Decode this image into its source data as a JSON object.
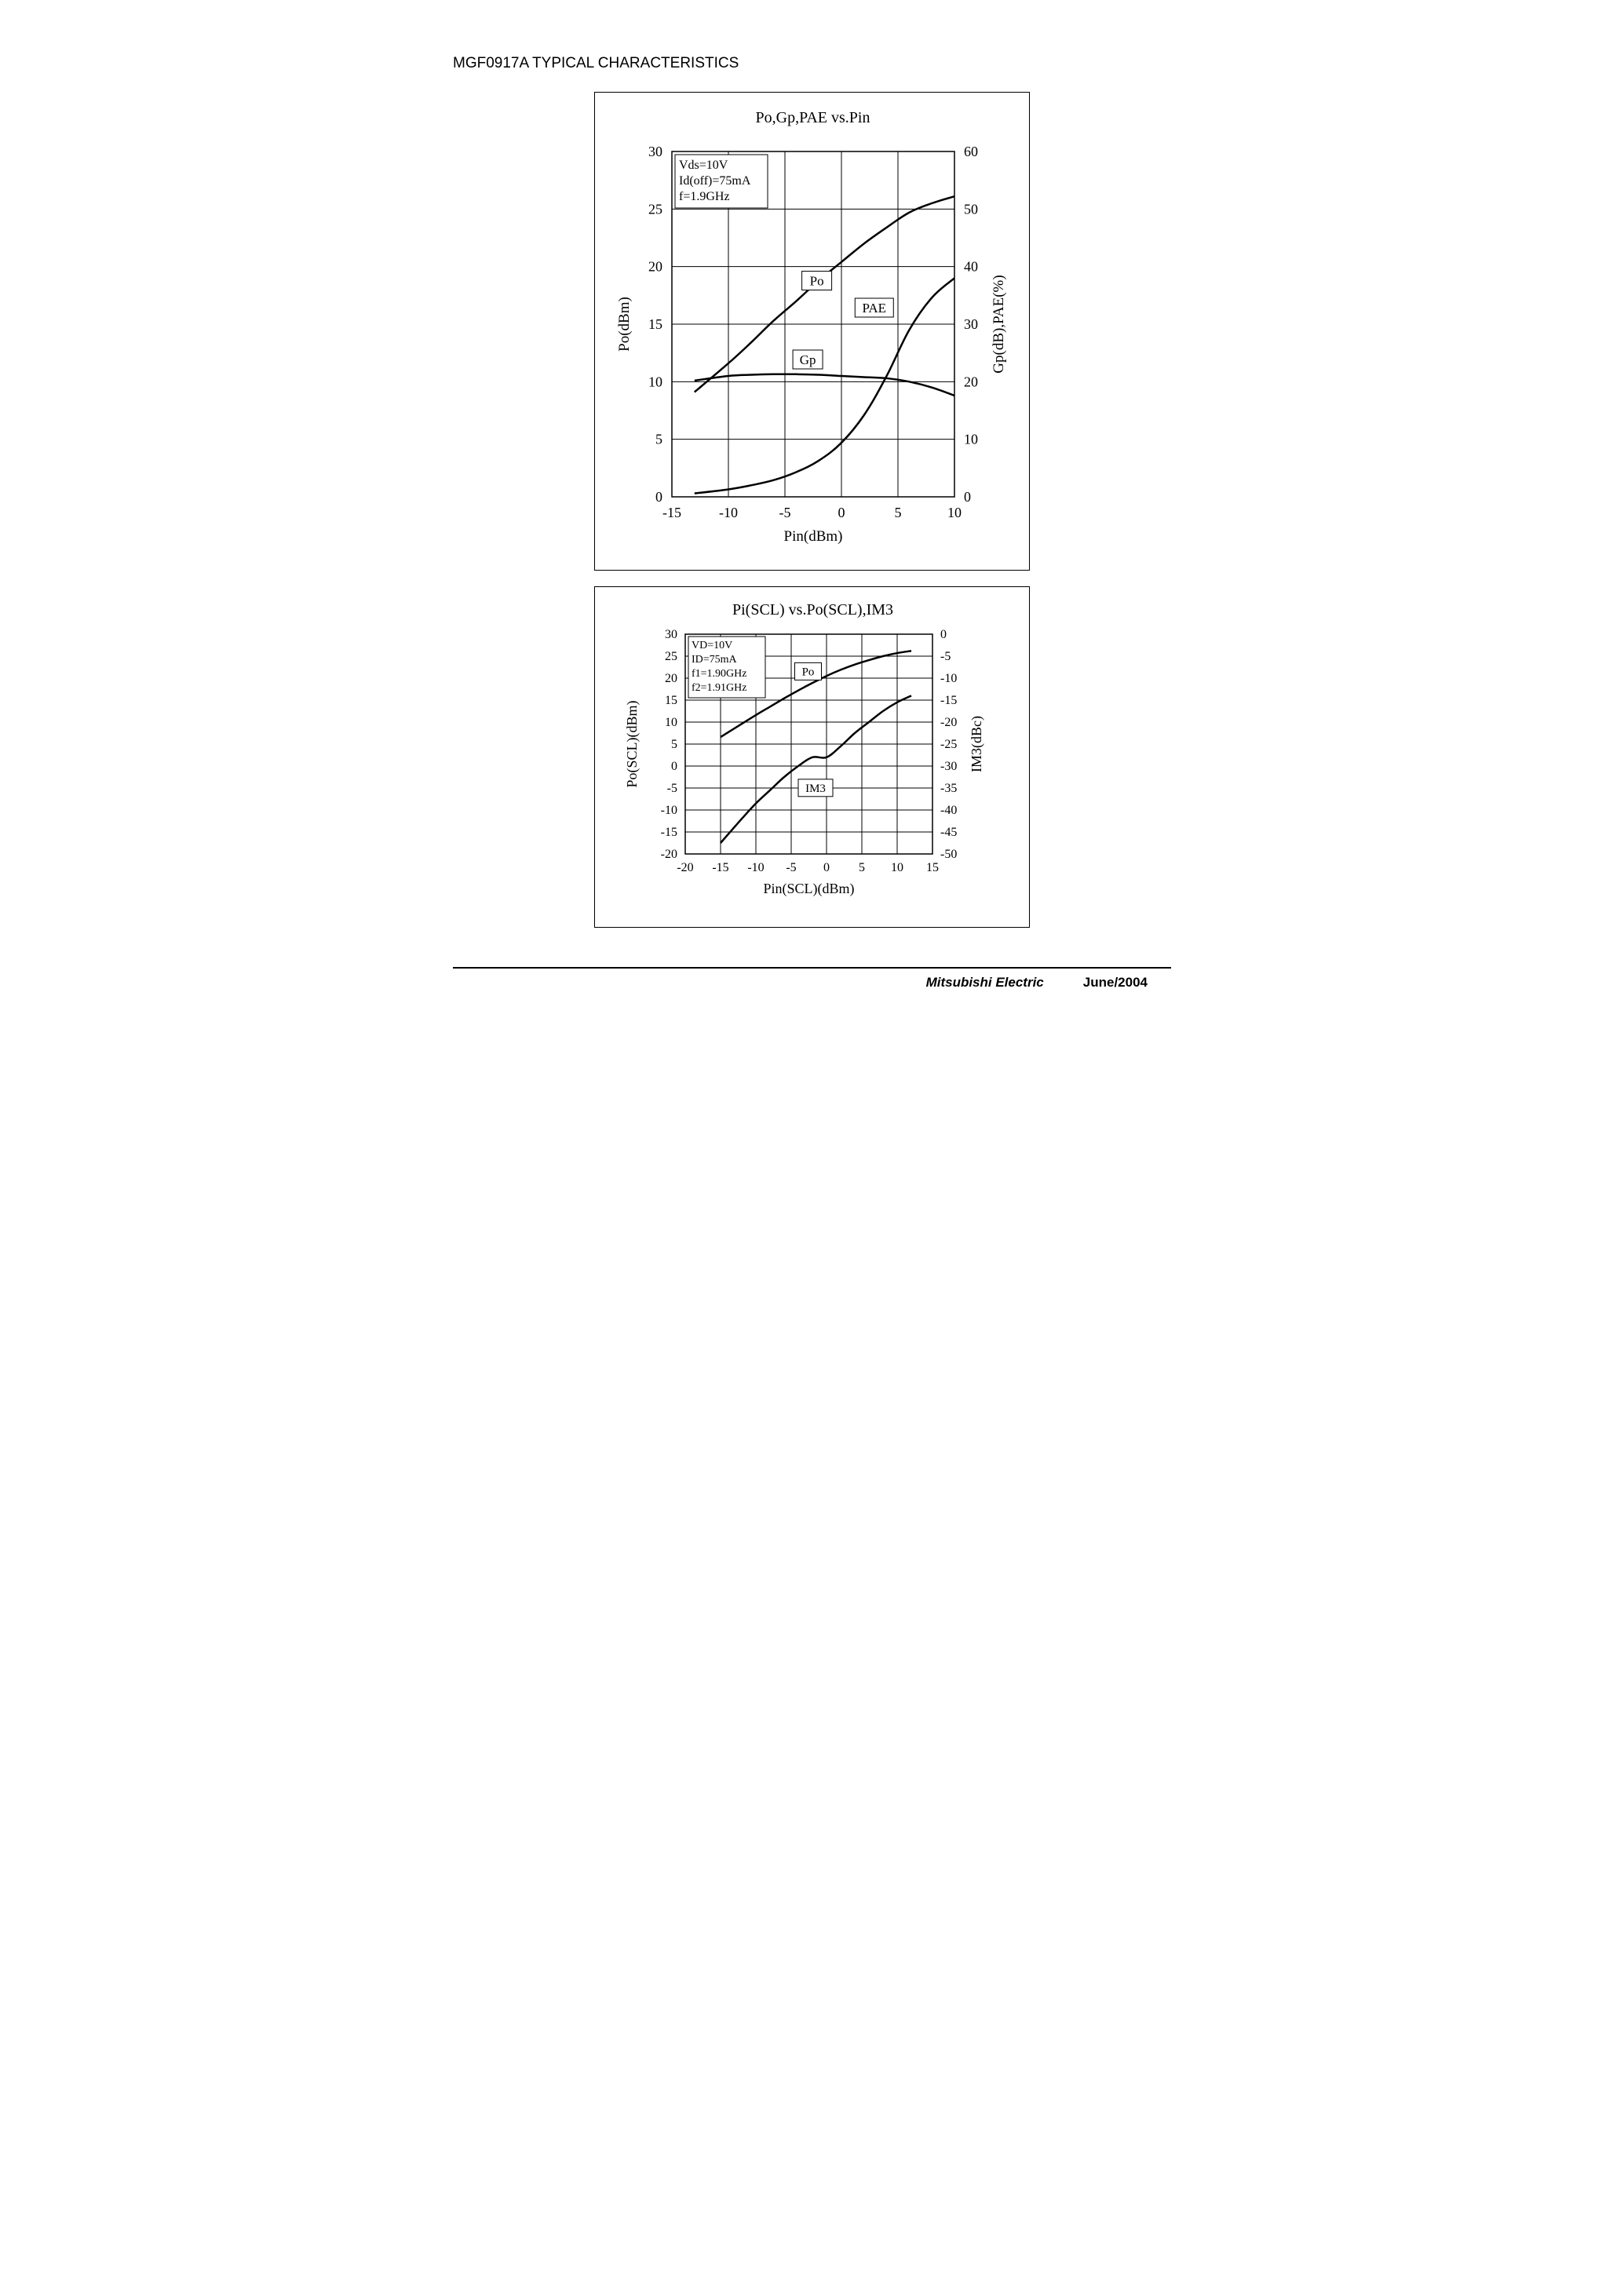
{
  "page": {
    "title": "MGF0917A TYPICAL CHARACTERISTICS",
    "footer_company": "Mitsubishi  Electric",
    "footer_date": "June/2004"
  },
  "chart1": {
    "type": "line",
    "title": "Po,Gp,PAE vs.Pin",
    "title_fontsize": 20,
    "background_color": "#ffffff",
    "axis_color": "#000000",
    "line_color": "#000000",
    "line_width": 2.5,
    "font_family": "Times New Roman",
    "tick_fontsize": 18,
    "label_fontsize": 19,
    "x_label": "Pin(dBm)",
    "y_label_left": "Po(dBm)",
    "y_label_right": "Gp(dB),PAE(%)",
    "xlim": [
      -15,
      10
    ],
    "xticks": [
      -15,
      -10,
      -5,
      0,
      5,
      10
    ],
    "ylim_left": [
      0,
      30
    ],
    "yticks_left": [
      0,
      5,
      10,
      15,
      20,
      25,
      30
    ],
    "ylim_right": [
      0,
      60
    ],
    "yticks_right": [
      0,
      10,
      20,
      30,
      40,
      50,
      60
    ],
    "grid": true,
    "grid_color": "#000000",
    "conditions_box": {
      "lines": [
        "Vds=10V",
        "Id(off)=75mA",
        "f=1.9GHz"
      ],
      "border_color": "#000000",
      "fontsize": 16
    },
    "series_labels": {
      "Po": "Po",
      "PAE": "PAE",
      "Gp": "Gp"
    },
    "series": {
      "Po": {
        "axis": "left",
        "x": [
          -13,
          -10,
          -8,
          -6,
          -4,
          -2,
          0,
          2,
          4,
          6,
          8,
          10
        ],
        "y": [
          9.1,
          11.6,
          13.4,
          15.3,
          17.0,
          18.8,
          20.4,
          22.0,
          23.4,
          24.7,
          25.5,
          26.1
        ]
      },
      "Gp": {
        "axis": "right",
        "x": [
          -13,
          -10,
          -8,
          -6,
          -4,
          -2,
          0,
          2,
          4,
          6,
          8,
          10
        ],
        "y": [
          20.2,
          21.0,
          21.2,
          21.3,
          21.3,
          21.2,
          21.0,
          20.8,
          20.6,
          20.0,
          19.0,
          17.6
        ]
      },
      "PAE": {
        "axis": "right",
        "x": [
          -13,
          -10,
          -8,
          -6,
          -4,
          -2,
          0,
          2,
          4,
          6,
          8,
          10
        ],
        "y": [
          0.6,
          1.3,
          2.0,
          2.9,
          4.3,
          6.3,
          9.4,
          14.2,
          21.0,
          29.0,
          34.6,
          38.0
        ]
      }
    }
  },
  "chart2": {
    "type": "line",
    "title": "Pi(SCL) vs.Po(SCL),IM3",
    "title_fontsize": 20,
    "background_color": "#ffffff",
    "axis_color": "#000000",
    "line_color": "#000000",
    "line_width": 2.5,
    "font_family": "Times New Roman",
    "tick_fontsize": 16,
    "label_fontsize": 18,
    "x_label": "Pin(SCL)(dBm)",
    "y_label_left": "Po(SCL)(dBm)",
    "y_label_right": "IM3(dBc)",
    "xlim": [
      -20,
      15
    ],
    "xticks": [
      -20,
      -15,
      -10,
      -5,
      0,
      5,
      10,
      15
    ],
    "ylim_left": [
      -20,
      30
    ],
    "yticks_left": [
      -20,
      -15,
      -10,
      -5,
      0,
      5,
      10,
      15,
      20,
      25,
      30
    ],
    "ylim_right": [
      -50,
      0
    ],
    "yticks_right": [
      -50,
      -45,
      -40,
      -35,
      -30,
      -25,
      -20,
      -15,
      -10,
      -5,
      0
    ],
    "grid": true,
    "grid_color": "#000000",
    "conditions_box": {
      "lines": [
        "VD=10V",
        "ID=75mA",
        "f1=1.90GHz",
        "f2=1.91GHz"
      ],
      "border_color": "#000000",
      "fontsize": 14
    },
    "series_labels": {
      "Po": "Po",
      "IM3": "IM3"
    },
    "series": {
      "Po": {
        "axis": "left",
        "x": [
          -15,
          -12,
          -10,
          -8,
          -6,
          -4,
          -2,
          0,
          2,
          4,
          6,
          8,
          10,
          12
        ],
        "y": [
          6.6,
          9.6,
          11.6,
          13.5,
          15.4,
          17.2,
          18.9,
          20.5,
          21.9,
          23.1,
          24.1,
          25.0,
          25.7,
          26.2
        ]
      },
      "IM3": {
        "axis": "right",
        "x": [
          -15,
          -12,
          -10,
          -8,
          -6,
          -4,
          -2,
          0,
          2,
          4,
          6,
          8,
          10,
          12
        ],
        "y": [
          -47.5,
          -42.0,
          -38.5,
          -35.5,
          -32.5,
          -30.0,
          -28.0,
          -28.0,
          -25.5,
          -22.5,
          -20.0,
          -17.5,
          -15.5,
          -14.0
        ]
      }
    }
  }
}
